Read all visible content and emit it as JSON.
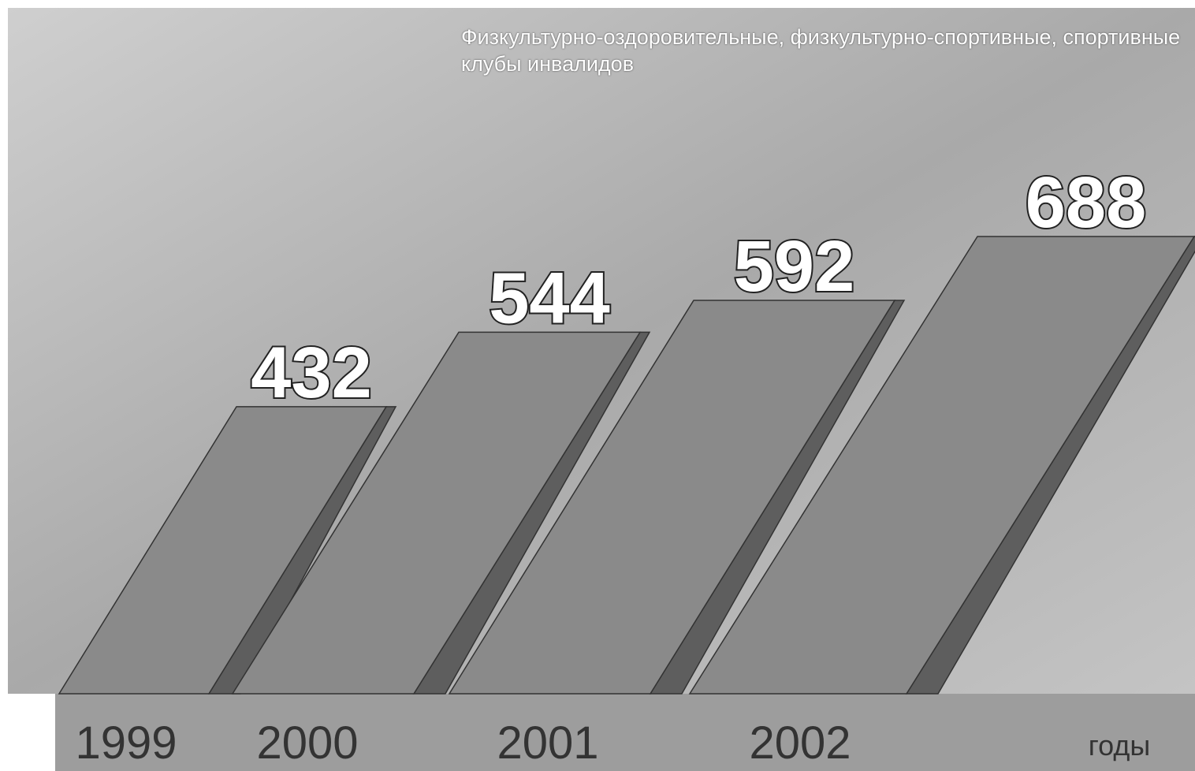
{
  "chart_data": {
    "type": "bar",
    "title": "Физкультурно-оздоровительные, физкультурно-спортивные, спортивные клубы инвалидов",
    "categories": [
      "1999",
      "2000",
      "2001",
      "2002"
    ],
    "values": [
      432,
      544,
      592,
      688
    ],
    "x_label": "годы",
    "color": "#8a8a8a"
  }
}
